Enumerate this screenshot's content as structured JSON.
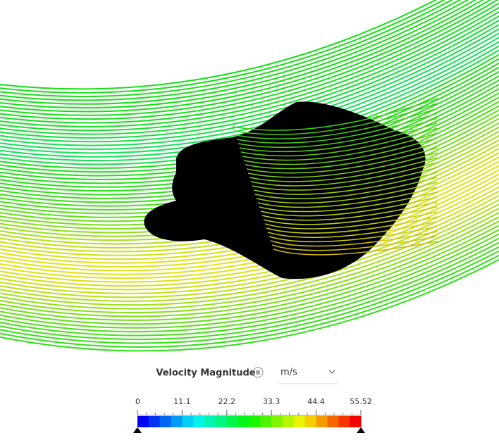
{
  "legend": {
    "title": "Velocity Magnitude",
    "unit": "m/s",
    "range": [
      0,
      55.52
    ],
    "ticks": [
      0,
      11.1,
      22.2,
      33.3,
      44.4,
      55.52
    ]
  }
}
